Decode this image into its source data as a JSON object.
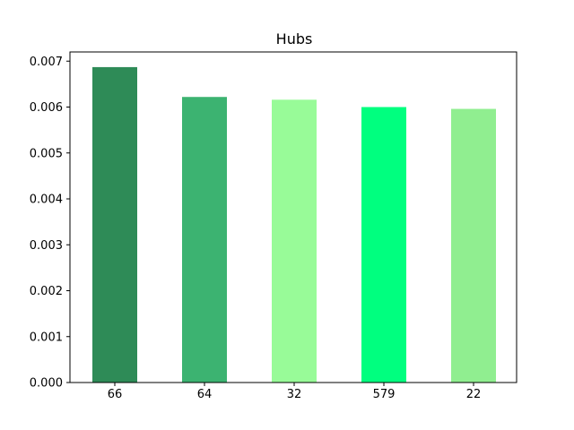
{
  "chart_data": {
    "type": "bar",
    "title": "Hubs",
    "xlabel": "",
    "ylabel": "",
    "categories": [
      "66",
      "64",
      "32",
      "579",
      "22"
    ],
    "values": [
      0.00687,
      0.00622,
      0.00616,
      0.006,
      0.00596
    ],
    "colors": [
      "#2e8b57",
      "#3cb371",
      "#98fb98",
      "#00ff7f",
      "#90ee90"
    ],
    "ylim": [
      0,
      0.0072
    ],
    "yticks": [
      0.0,
      0.001,
      0.002,
      0.003,
      0.004,
      0.005,
      0.006,
      0.007
    ],
    "ytick_labels": [
      "0.000",
      "0.001",
      "0.002",
      "0.003",
      "0.004",
      "0.005",
      "0.006",
      "0.007"
    ],
    "grid": false,
    "legend": "none"
  }
}
